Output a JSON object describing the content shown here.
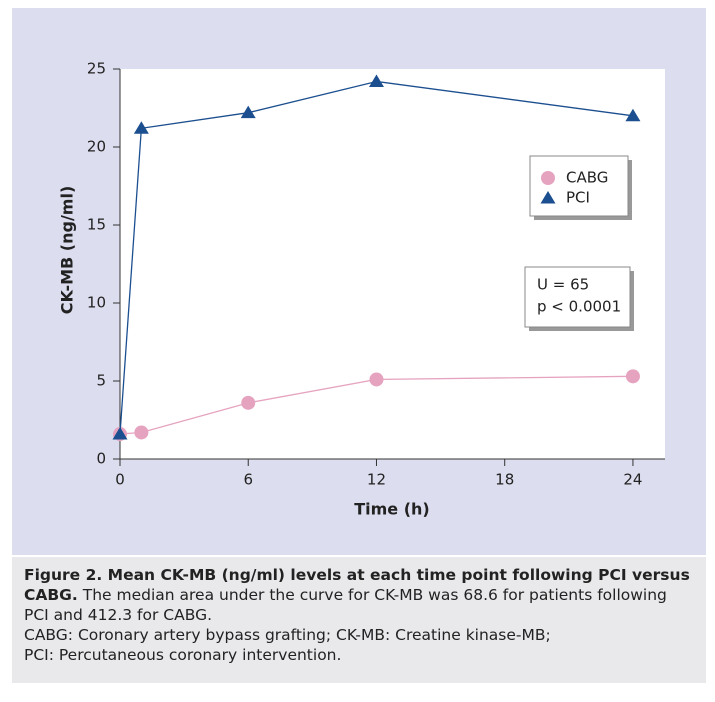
{
  "chart_data": {
    "type": "line",
    "x_label": "Time (h)",
    "y_label": "CK-MB (ng/ml)",
    "xlim": [
      0,
      25.5
    ],
    "xticks": [
      0,
      6,
      12,
      18,
      24
    ],
    "ylim": [
      0,
      25
    ],
    "yticks": [
      0,
      5,
      10,
      15,
      20,
      25
    ],
    "grid": false,
    "legend": "upper right",
    "series": [
      {
        "name": "CABG",
        "color": "#e6a3bf",
        "marker": "circle",
        "x": [
          0,
          1,
          6,
          12,
          24
        ],
        "values": [
          1.6,
          1.7,
          3.6,
          5.1,
          5.3
        ]
      },
      {
        "name": "PCI",
        "color": "#1c4f8f",
        "marker": "triangle",
        "x": [
          0,
          1,
          6,
          12,
          24
        ],
        "values": [
          1.6,
          21.2,
          22.2,
          24.2,
          22.0
        ]
      }
    ],
    "annotations": [
      "U = 65",
      "p < 0.0001"
    ]
  },
  "caption": {
    "title": "Figure 2. Mean CK-MB (ng/ml) levels at each time point following PCI versus CABG.",
    "text": "The median area under the curve for CK-MB was 68.6 for patients following PCI and 412.3 for CABG.",
    "abbreviations": [
      "CABG: Coronary artery bypass grafting; CK-MB: Creatine kinase-MB;",
      "PCI: Percutaneous coronary intervention."
    ]
  }
}
